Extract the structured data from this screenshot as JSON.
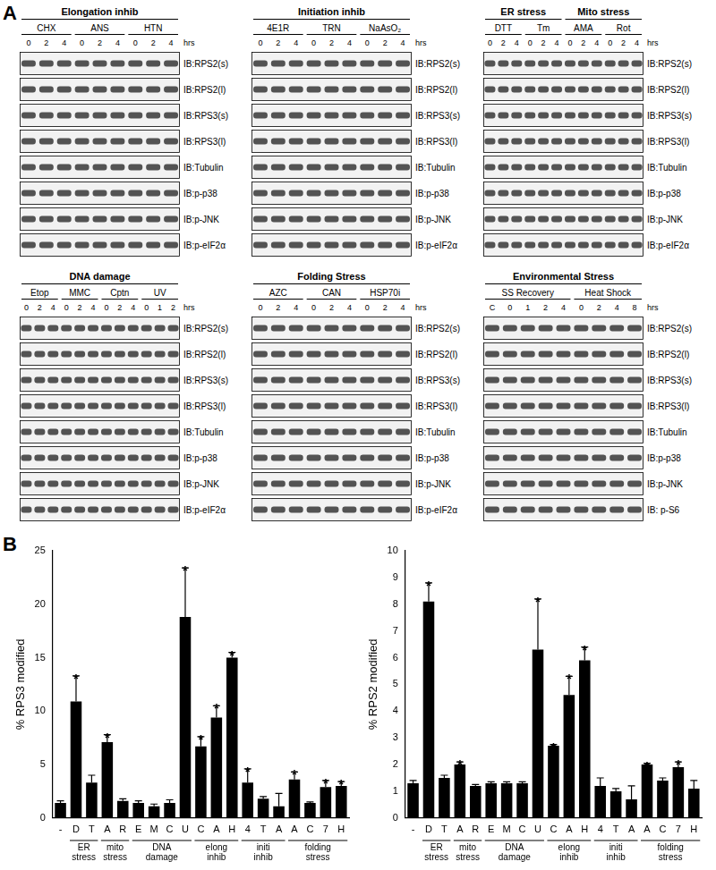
{
  "panel_a": {
    "label": "A",
    "blot_sets": [
      {
        "groups": [
          {
            "title": "Elongation inhib",
            "treatments": [
              {
                "name": "CHX",
                "times": [
                  "0",
                  "2",
                  "4"
                ]
              },
              {
                "name": "ANS",
                "times": [
                  "0",
                  "2",
                  "4"
                ]
              },
              {
                "name": "HTN",
                "times": [
                  "0",
                  "2",
                  "4"
                ]
              }
            ]
          }
        ],
        "time_unit": "hrs",
        "antibodies": [
          "IB:RPS2(s)",
          "IB:RPS2(l)",
          "IB:RPS3(s)",
          "IB:RPS3(l)",
          "IB:Tubulin",
          "IB:p-p38",
          "IB:p-JNK",
          "IB:p-eIF2α"
        ]
      },
      {
        "groups": [
          {
            "title": "Initiation inhib",
            "treatments": [
              {
                "name": "4E1R",
                "times": [
                  "0",
                  "2",
                  "4"
                ]
              },
              {
                "name": "TRN",
                "times": [
                  "0",
                  "2",
                  "4"
                ]
              },
              {
                "name": "NaAsO₂",
                "times": [
                  "0",
                  "2",
                  "4"
                ]
              }
            ]
          }
        ],
        "time_unit": "hrs",
        "antibodies": [
          "IB:RPS2(s)",
          "IB:RPS2(l)",
          "IB:RPS3(s)",
          "IB:RPS3(l)",
          "IB:Tubulin",
          "IB:p-p38",
          "IB:p-JNK",
          "IB:p-eIF2α"
        ]
      },
      {
        "groups": [
          {
            "title": "ER stress",
            "treatments": [
              {
                "name": "DTT",
                "times": [
                  "0",
                  "2",
                  "4"
                ]
              },
              {
                "name": "Tm",
                "times": [
                  "0",
                  "2",
                  "4"
                ]
              }
            ]
          },
          {
            "title": "Mito stress",
            "treatments": [
              {
                "name": "AMA",
                "times": [
                  "0",
                  "2",
                  "4"
                ]
              },
              {
                "name": "Rot",
                "times": [
                  "0",
                  "2",
                  "4"
                ]
              }
            ]
          }
        ],
        "time_unit": "hrs",
        "antibodies": [
          "IB:RPS2(s)",
          "IB:RPS2(l)",
          "IB:RPS3(s)",
          "IB:RPS3(l)",
          "IB:Tubulin",
          "IB:p-p38",
          "IB:p-JNK",
          "IB:p-eIF2α"
        ]
      },
      {
        "groups": [
          {
            "title": "DNA damage",
            "treatments": [
              {
                "name": "Etop",
                "times": [
                  "0",
                  "2",
                  "4"
                ]
              },
              {
                "name": "MMC",
                "times": [
                  "0",
                  "2",
                  "4"
                ]
              },
              {
                "name": "Cptn",
                "times": [
                  "0",
                  "2",
                  "4"
                ]
              },
              {
                "name": "UV",
                "times": [
                  "0",
                  "1",
                  "2"
                ]
              }
            ]
          }
        ],
        "time_unit": "hrs",
        "antibodies": [
          "IB:RPS2(s)",
          "IB:RPS2(l)",
          "IB:RPS3(s)",
          "IB:RPS3(l)",
          "IB:Tubulin",
          "IB:p-p38",
          "IB:p-JNK",
          "IB:p-eIF2α"
        ]
      },
      {
        "groups": [
          {
            "title": "Folding Stress",
            "treatments": [
              {
                "name": "AZC",
                "times": [
                  "0",
                  "2",
                  "4"
                ]
              },
              {
                "name": "CAN",
                "times": [
                  "0",
                  "2",
                  "4"
                ]
              },
              {
                "name": "HSP70i",
                "times": [
                  "0",
                  "2",
                  "4"
                ]
              }
            ]
          }
        ],
        "time_unit": "hrs",
        "antibodies": [
          "IB:RPS2(s)",
          "IB:RPS2(l)",
          "IB:RPS3(s)",
          "IB:RPS3(l)",
          "IB:Tubulin",
          "IB:p-p38",
          "IB:p-JNK",
          "IB:p-eIF2α"
        ]
      },
      {
        "groups": [
          {
            "title": "Environmental Stress",
            "treatments": [
              {
                "name": "SS Recovery",
                "times": [
                  "C",
                  "0",
                  "1",
                  "2",
                  "4"
                ]
              },
              {
                "name": "Heat Shock",
                "times": [
                  "0",
                  "2",
                  "4",
                  "8"
                ]
              }
            ]
          }
        ],
        "time_unit": "hrs",
        "antibodies": [
          "IB:RPS2(s)",
          "IB:RPS2(l)",
          "IB:RPS3(s)",
          "IB:RPS3(l)",
          "IB:Tubulin",
          "IB:p-p38",
          "IB:p-JNK",
          "IB: p-S6"
        ]
      }
    ]
  },
  "panel_b": {
    "label": "B"
  },
  "chart_data": [
    {
      "type": "bar",
      "y_label": "% RPS3 modified",
      "categories": [
        "-",
        "D",
        "T",
        "A",
        "R",
        "E",
        "M",
        "C",
        "U",
        "C",
        "A",
        "H",
        "4",
        "T",
        "A",
        "A",
        "C",
        "7",
        "H"
      ],
      "values": [
        1.4,
        10.9,
        3.3,
        7.1,
        1.6,
        1.4,
        1.1,
        1.4,
        18.8,
        6.7,
        9.4,
        15.0,
        3.3,
        1.8,
        1.1,
        3.6,
        1.4,
        2.9,
        3.0
      ],
      "errors": [
        0.2,
        2.4,
        0.7,
        0.7,
        0.2,
        0.2,
        0.2,
        0.3,
        4.6,
        0.9,
        1.1,
        0.5,
        1.3,
        0.2,
        1.2,
        0.7,
        0.1,
        0.6,
        0.4
      ],
      "significance": [
        null,
        "*",
        null,
        "*",
        null,
        null,
        null,
        null,
        "*",
        "*",
        "*",
        "*",
        "*",
        null,
        null,
        "*",
        null,
        "*",
        "*"
      ],
      "category_groups": [
        {
          "label": null,
          "count": 1
        },
        {
          "label": "ER stress",
          "count": 2
        },
        {
          "label": "mito stress",
          "count": 2
        },
        {
          "label": "DNA damage",
          "count": 4
        },
        {
          "label": "elong inhib",
          "count": 3
        },
        {
          "label": "initi inhib",
          "count": 3
        },
        {
          "label": "folding stress",
          "count": 4
        }
      ],
      "color": "#000000",
      "ylim": [
        0,
        25
      ],
      "yticks": [
        0,
        5,
        10,
        15,
        20,
        25
      ],
      "grid": false
    },
    {
      "type": "bar",
      "y_label": "% RPS2 modified",
      "categories": [
        "-",
        "D",
        "T",
        "A",
        "R",
        "E",
        "M",
        "C",
        "U",
        "C",
        "A",
        "H",
        "4",
        "T",
        "A",
        "A",
        "C",
        "7",
        "H"
      ],
      "values": [
        1.3,
        8.1,
        1.5,
        2.0,
        1.2,
        1.3,
        1.3,
        1.3,
        6.3,
        2.7,
        4.6,
        5.9,
        1.2,
        1.0,
        0.7,
        2.0,
        1.4,
        1.9,
        1.1
      ],
      "errors": [
        0.1,
        0.7,
        0.1,
        0.1,
        0.05,
        0.05,
        0.05,
        0.05,
        1.9,
        0.05,
        0.7,
        0.5,
        0.3,
        0.1,
        0.5,
        0.05,
        0.1,
        0.2,
        0.3
      ],
      "significance": [
        null,
        "*",
        null,
        "*",
        null,
        null,
        null,
        null,
        "*",
        "*",
        "*",
        "*",
        null,
        null,
        null,
        "*",
        null,
        "*",
        null
      ],
      "category_groups": [
        {
          "label": null,
          "count": 1
        },
        {
          "label": "ER stress",
          "count": 2
        },
        {
          "label": "mito stress",
          "count": 2
        },
        {
          "label": "DNA damage",
          "count": 4
        },
        {
          "label": "elong inhib",
          "count": 3
        },
        {
          "label": "initi inhib",
          "count": 3
        },
        {
          "label": "folding stress",
          "count": 4
        }
      ],
      "color": "#000000",
      "ylim": [
        0,
        10
      ],
      "yticks": [
        0,
        1,
        2,
        3,
        4,
        5,
        6,
        7,
        8,
        9,
        10
      ],
      "grid": false
    }
  ]
}
